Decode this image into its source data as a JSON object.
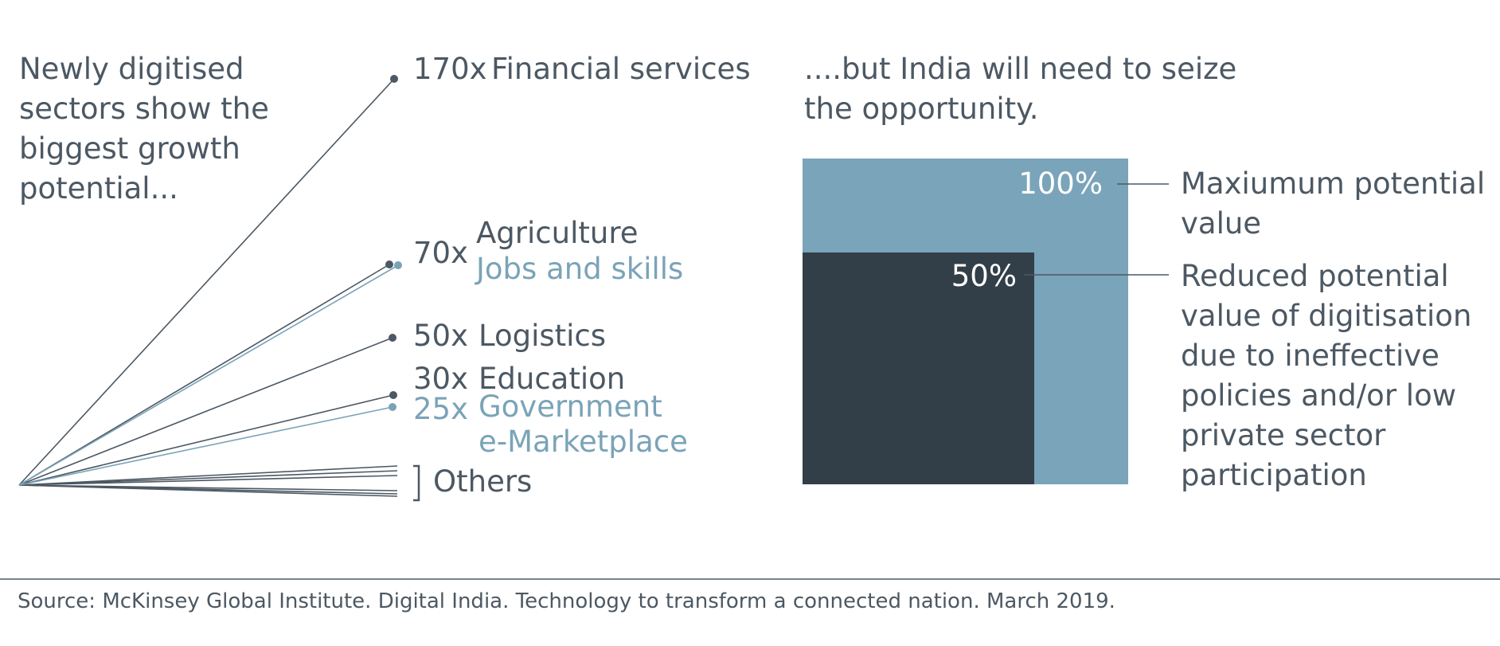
{
  "left": {
    "title": "Newly digitised sectors show the biggest growth potential...",
    "items": [
      {
        "multiplier": "170x",
        "labels": [
          "Financial services"
        ]
      },
      {
        "multiplier": "70x",
        "labels": [
          "Agriculture",
          "Jobs and skills"
        ]
      },
      {
        "multiplier": "50x",
        "labels": [
          "Logistics"
        ]
      },
      {
        "multiplier": "30x",
        "labels": [
          "Education"
        ]
      },
      {
        "multiplier": "25x",
        "labels": [
          "Government e-Marketplace"
        ]
      }
    ],
    "others": "Others"
  },
  "right": {
    "title": "....but India will need to seize the opportunity.",
    "outer_label": "100%",
    "inner_label": "50%",
    "outer_caption": "Maxiumum potential value",
    "inner_caption": "Reduced potential value of digitisation due to ineffective policies and/or low private sector participation"
  },
  "source": "Source: McKinsey Global Institute. Digital India. Technology to transform a connected nation. March 2019."
}
